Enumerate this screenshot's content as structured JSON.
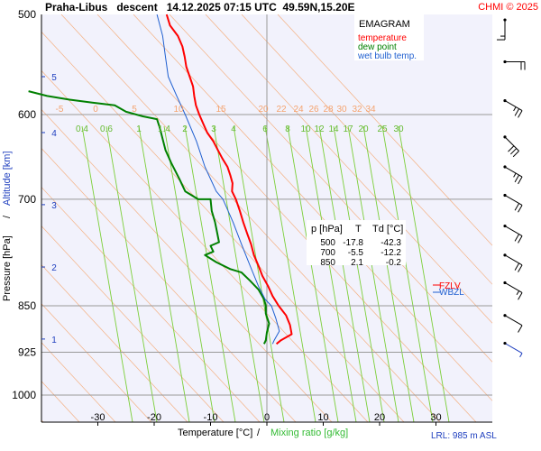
{
  "header": {
    "title": "Praha-Libus   descent   14.12.2025 07:15 UTC  49.59N,15.20E",
    "copyright": "CHMI © 2025"
  },
  "legend": {
    "title": "EMAGRAM",
    "items": [
      {
        "label": "temperature",
        "color": "#ff0000"
      },
      {
        "label": "dew point",
        "color": "#008000"
      },
      {
        "label": "wet bulb temp.",
        "color": "#1f5fd0"
      }
    ]
  },
  "axes": {
    "xlabel_temp": "Temperature [°C]",
    "xlabel_sep": "/",
    "xlabel_mix": "Mixing ratio [g/kg]",
    "ylabel_pressure": "Pressure [hPa]",
    "ylabel_sep": "/",
    "ylabel_altitude": "Altitude [km]",
    "lrl": "LRL: 985 m ASL"
  },
  "levels_table": {
    "headers": [
      "p [hPa]",
      "T",
      "Td [°C]"
    ],
    "rows": [
      [
        "500",
        "-17.8",
        "-42.3"
      ],
      [
        "700",
        "-5.5",
        "-12.2"
      ],
      [
        "850",
        "2.1",
        "-0.2"
      ]
    ]
  },
  "markers": [
    {
      "label": "FZLV",
      "color": "#ff0000"
    },
    {
      "label": "WBZL",
      "color": "#1f5fd0"
    }
  ],
  "chart_data": {
    "type": "emagram",
    "title": "Praha-Libus   descent   14.12.2025 07:15 UTC  49.59N,15.20E",
    "xlabel": "Temperature [°C] / Mixing ratio [g/kg]",
    "ylabel": "Pressure [hPa] / Altitude [km]",
    "xlim": [
      -40,
      40
    ],
    "ylim_pressure": [
      1000,
      500
    ],
    "pressure_ticks": [
      500,
      600,
      700,
      850,
      925,
      1000
    ],
    "temp_ticks": [
      -30,
      -20,
      -10,
      0,
      10,
      20,
      30
    ],
    "altitude_ticks": [
      {
        "km": 5,
        "p": 560
      },
      {
        "km": 4,
        "p": 620
      },
      {
        "km": 3,
        "p": 707
      },
      {
        "km": 2,
        "p": 792
      },
      {
        "km": 1,
        "p": 903
      }
    ],
    "dry_adiabat_labels": [
      "-5",
      "0",
      "5",
      "10",
      "15",
      "20",
      "22",
      "24",
      "26",
      "28",
      "30",
      "32",
      "34"
    ],
    "mixing_ratio_labels": [
      "0.4",
      "0.6",
      "1",
      "1.4",
      "2",
      "3",
      "4",
      "6",
      "8",
      "10",
      "12",
      "14",
      "17",
      "20",
      "25",
      "30"
    ],
    "series": [
      {
        "name": "temperature",
        "color": "#ff0000",
        "points": [
          [
            -17.8,
            500
          ],
          [
            -17.2,
            510
          ],
          [
            -15.8,
            520
          ],
          [
            -15.0,
            530
          ],
          [
            -14.6,
            540
          ],
          [
            -14.3,
            550
          ],
          [
            -13.7,
            560
          ],
          [
            -13.1,
            570
          ],
          [
            -12.9,
            580
          ],
          [
            -12.6,
            590
          ],
          [
            -12.0,
            600
          ],
          [
            -11.3,
            610
          ],
          [
            -10.6,
            620
          ],
          [
            -9.5,
            630
          ],
          [
            -8.7,
            640
          ],
          [
            -7.9,
            650
          ],
          [
            -7.0,
            660
          ],
          [
            -6.5,
            670
          ],
          [
            -6.1,
            680
          ],
          [
            -6.2,
            690
          ],
          [
            -5.5,
            700
          ],
          [
            -4.8,
            715
          ],
          [
            -4.2,
            730
          ],
          [
            -3.5,
            745
          ],
          [
            -2.8,
            760
          ],
          [
            -2.3,
            775
          ],
          [
            -1.5,
            790
          ],
          [
            -0.8,
            805
          ],
          [
            0.2,
            820
          ],
          [
            1.0,
            835
          ],
          [
            2.1,
            850
          ],
          [
            3.4,
            865
          ],
          [
            4.1,
            880
          ],
          [
            4.4,
            895
          ],
          [
            2.5,
            905
          ],
          [
            1.7,
            911
          ]
        ]
      },
      {
        "name": "dew point",
        "color": "#008000",
        "points": [
          [
            -42.3,
            575
          ],
          [
            -39.0,
            580
          ],
          [
            -35.0,
            584
          ],
          [
            -31.0,
            587
          ],
          [
            -27.0,
            590
          ],
          [
            -25.0,
            597
          ],
          [
            -22.0,
            602
          ],
          [
            -19.5,
            605
          ],
          [
            -19.0,
            615
          ],
          [
            -18.0,
            640
          ],
          [
            -17.0,
            655
          ],
          [
            -15.5,
            675
          ],
          [
            -14.5,
            690
          ],
          [
            -12.2,
            700
          ],
          [
            -10.0,
            700
          ],
          [
            -9.8,
            715
          ],
          [
            -9.2,
            730
          ],
          [
            -8.8,
            745
          ],
          [
            -8.5,
            757
          ],
          [
            -10.0,
            762
          ],
          [
            -9.5,
            770
          ],
          [
            -11.0,
            775
          ],
          [
            -9.0,
            785
          ],
          [
            -6.5,
            795
          ],
          [
            -4.5,
            800
          ],
          [
            -3.0,
            812
          ],
          [
            -1.5,
            825
          ],
          [
            -0.5,
            840
          ],
          [
            -0.2,
            850
          ],
          [
            -0.2,
            862
          ],
          [
            0.4,
            878
          ],
          [
            0.0,
            892
          ],
          [
            -0.2,
            905
          ],
          [
            -0.5,
            911
          ]
        ]
      },
      {
        "name": "wet bulb temp.",
        "color": "#1f5fd0",
        "points": [
          [
            -19.5,
            500
          ],
          [
            -18.5,
            520
          ],
          [
            -18.0,
            540
          ],
          [
            -17.5,
            560
          ],
          [
            -16.0,
            580
          ],
          [
            -14.5,
            600
          ],
          [
            -12.5,
            630
          ],
          [
            -11.0,
            660
          ],
          [
            -9.0,
            690
          ],
          [
            -7.8,
            700
          ],
          [
            -6.0,
            730
          ],
          [
            -4.5,
            760
          ],
          [
            -3.0,
            790
          ],
          [
            -1.5,
            820
          ],
          [
            -0.3,
            840
          ],
          [
            0.8,
            850
          ],
          [
            1.6,
            870
          ],
          [
            2.2,
            890
          ],
          [
            1.3,
            905
          ],
          [
            1.0,
            911
          ]
        ]
      }
    ],
    "wind_barbs": [
      {
        "p": 505,
        "dir": 360,
        "spd": 15
      },
      {
        "p": 545,
        "dir": 270,
        "spd": 20
      },
      {
        "p": 585,
        "dir": 300,
        "spd": 25
      },
      {
        "p": 625,
        "dir": 315,
        "spd": 30
      },
      {
        "p": 660,
        "dir": 300,
        "spd": 25
      },
      {
        "p": 695,
        "dir": 300,
        "spd": 20
      },
      {
        "p": 735,
        "dir": 300,
        "spd": 20
      },
      {
        "p": 775,
        "dir": 300,
        "spd": 20
      },
      {
        "p": 815,
        "dir": 300,
        "spd": 15
      },
      {
        "p": 865,
        "dir": 300,
        "spd": 10
      },
      {
        "p": 910,
        "dir": 300,
        "spd": 5
      }
    ]
  }
}
